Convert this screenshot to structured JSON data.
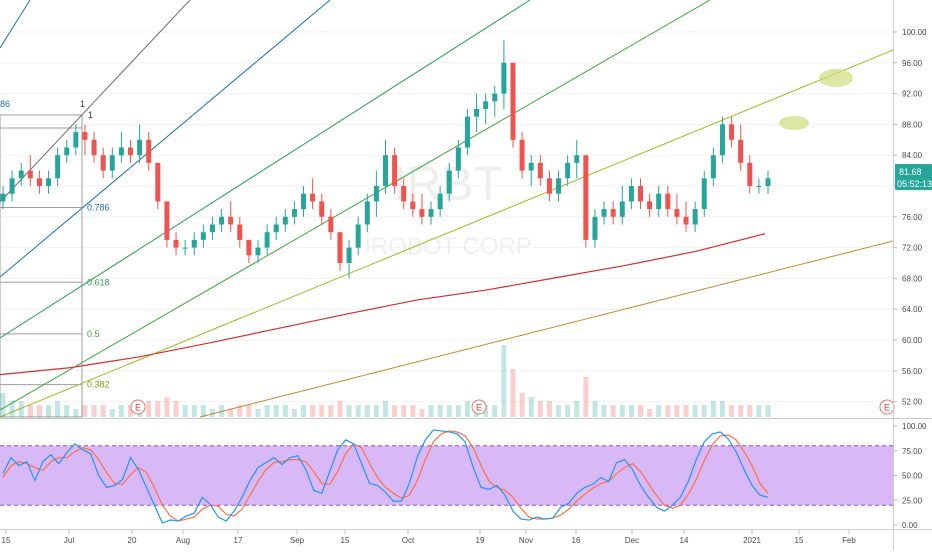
{
  "watermark": {
    "symbol": "IRBT",
    "name": "IROBOT CORP"
  },
  "price_axis": {
    "ticks": [
      "100.00",
      "96.00",
      "92.00",
      "88.00",
      "84.00",
      "80.00",
      "76.00",
      "72.00",
      "68.00",
      "64.00",
      "60.00",
      "56.00",
      "52.00"
    ],
    "tick_values": [
      100,
      96,
      92,
      88,
      84,
      80,
      76,
      72,
      68,
      64,
      60,
      56,
      52
    ],
    "last_price": "81.68",
    "countdown": "05:52:13",
    "last_price_color": "#26a69a"
  },
  "oscillator_axis": {
    "ticks": [
      "100.00",
      "75.00",
      "50.00",
      "25.00",
      "0.00"
    ],
    "tick_values": [
      100,
      75,
      50,
      25,
      0
    ],
    "upper_band": 80,
    "lower_band": 20
  },
  "time_axis": {
    "labels": [
      "15",
      "Jul",
      "20",
      "Aug",
      "17",
      "Sep",
      "15",
      "Oct",
      "19",
      "Nov",
      "16",
      "Dec",
      "14",
      "2021",
      "15",
      "Feb"
    ]
  },
  "fib_levels": [
    {
      "label": "0.786",
      "price": 77.2,
      "color": "#1e6fb0"
    },
    {
      "label": "0.618",
      "price": 67.5,
      "color": "#2e9e5b"
    },
    {
      "label": "0.5",
      "price": 60.8,
      "color": "#43a047"
    },
    {
      "label": "0.382",
      "price": 54.2,
      "color": "#8a9a10"
    }
  ],
  "fib_corner": {
    "left_label": "86",
    "top_label_a": "1",
    "top_label_b": "1"
  },
  "earnings_marker": "E",
  "colors": {
    "up": "#26a69a",
    "down": "#ef5350",
    "ma": "#d32f2f",
    "stoch_k": "#2196f3",
    "stoch_d": "#ff7043",
    "osc_band": "#d9b8f7",
    "axis_text": "#4a4a4a"
  },
  "chart_data": {
    "type": "candlestick",
    "price_range": [
      49.5,
      103.5
    ],
    "oscillator_range": [
      -7,
      106
    ],
    "candles": [
      [
        78,
        80,
        77,
        79
      ],
      [
        79,
        82,
        78,
        81
      ],
      [
        81,
        83,
        80,
        82
      ],
      [
        82,
        84,
        80,
        81
      ],
      [
        81,
        82,
        79,
        80
      ],
      [
        80,
        82,
        79,
        81
      ],
      [
        81,
        85,
        80,
        84
      ],
      [
        84,
        86,
        83,
        85
      ],
      [
        85,
        88,
        84,
        87
      ],
      [
        87,
        88,
        84,
        86
      ],
      [
        86,
        87,
        83,
        84
      ],
      [
        84,
        85,
        81,
        82
      ],
      [
        82,
        85,
        81,
        84
      ],
      [
        84,
        87,
        83,
        85
      ],
      [
        85,
        86,
        83,
        84
      ],
      [
        84,
        88,
        83,
        86
      ],
      [
        86,
        87,
        82,
        83
      ],
      [
        83,
        83,
        77,
        78
      ],
      [
        78,
        78,
        72,
        73
      ],
      [
        73,
        74,
        71,
        72
      ],
      [
        72,
        73,
        71,
        72
      ],
      [
        72,
        74,
        71,
        73
      ],
      [
        73,
        75,
        72,
        74
      ],
      [
        74,
        76,
        73,
        75
      ],
      [
        75,
        77,
        74,
        76
      ],
      [
        76,
        78,
        74,
        75
      ],
      [
        75,
        76,
        72,
        73
      ],
      [
        73,
        73,
        70,
        71
      ],
      [
        71,
        73,
        70,
        72
      ],
      [
        72,
        75,
        71,
        74
      ],
      [
        74,
        76,
        73,
        75
      ],
      [
        75,
        77,
        74,
        76
      ],
      [
        76,
        78,
        75,
        77
      ],
      [
        77,
        80,
        76,
        79
      ],
      [
        79,
        81,
        77,
        78
      ],
      [
        78,
        79,
        75,
        76
      ],
      [
        76,
        77,
        73,
        74
      ],
      [
        74,
        74,
        69,
        70
      ],
      [
        70,
        73,
        68,
        72
      ],
      [
        72,
        76,
        71,
        75
      ],
      [
        75,
        79,
        74,
        78
      ],
      [
        78,
        82,
        76,
        80
      ],
      [
        80,
        86,
        79,
        84
      ],
      [
        84,
        85,
        79,
        80
      ],
      [
        80,
        81,
        77,
        78
      ],
      [
        78,
        79,
        76,
        77
      ],
      [
        77,
        79,
        75,
        76
      ],
      [
        76,
        78,
        75,
        77
      ],
      [
        77,
        80,
        76,
        79
      ],
      [
        79,
        83,
        78,
        82
      ],
      [
        82,
        86,
        81,
        85
      ],
      [
        85,
        90,
        84,
        89
      ],
      [
        89,
        92,
        87,
        90
      ],
      [
        90,
        92,
        88,
        91
      ],
      [
        91,
        93,
        89,
        92
      ],
      [
        92,
        99,
        90,
        96
      ],
      [
        96,
        96,
        85,
        86
      ],
      [
        86,
        87,
        81,
        82
      ],
      [
        82,
        84,
        80,
        83
      ],
      [
        83,
        84,
        80,
        81
      ],
      [
        81,
        82,
        78,
        79
      ],
      [
        79,
        82,
        78,
        81
      ],
      [
        81,
        84,
        80,
        83
      ],
      [
        83,
        86,
        81,
        84
      ],
      [
        84,
        84,
        72,
        73
      ],
      [
        73,
        77,
        72,
        76
      ],
      [
        76,
        78,
        75,
        77
      ],
      [
        77,
        78,
        75,
        76
      ],
      [
        76,
        80,
        75,
        78
      ],
      [
        78,
        81,
        77,
        80
      ],
      [
        80,
        81,
        77,
        78
      ],
      [
        78,
        79,
        76,
        77
      ],
      [
        77,
        80,
        76,
        79
      ],
      [
        79,
        80,
        76,
        77
      ],
      [
        77,
        79,
        75,
        76
      ],
      [
        76,
        78,
        74,
        75
      ],
      [
        75,
        78,
        74,
        77
      ],
      [
        77,
        82,
        76,
        81
      ],
      [
        81,
        85,
        80,
        84
      ],
      [
        84,
        89,
        83,
        88
      ],
      [
        88,
        89,
        85,
        86
      ],
      [
        86,
        88,
        82,
        83
      ],
      [
        83,
        84,
        79,
        80
      ],
      [
        80,
        81,
        79,
        80
      ],
      [
        80,
        82,
        79,
        81
      ]
    ],
    "volume": [
      6,
      4,
      4,
      3,
      3,
      3,
      4,
      3,
      2,
      3,
      3,
      3,
      2,
      3,
      3,
      3,
      4,
      4,
      5,
      4,
      3,
      3,
      3,
      2,
      3,
      2,
      3,
      3,
      2,
      3,
      3,
      3,
      2,
      3,
      3,
      3,
      3,
      4,
      3,
      3,
      3,
      3,
      4,
      3,
      3,
      3,
      2,
      3,
      3,
      3,
      3,
      4,
      3,
      3,
      3,
      18,
      12,
      6,
      5,
      4,
      4,
      3,
      3,
      4,
      10,
      4,
      3,
      3,
      3,
      3,
      3,
      2,
      3,
      3,
      3,
      3,
      3,
      3,
      4,
      4,
      3,
      3,
      3,
      3,
      3
    ],
    "moving_average": [
      55.5,
      56.4,
      57.8,
      59.6,
      61.5,
      63.4,
      65.2,
      66.5,
      68.1,
      69.7,
      71.5,
      73.8
    ],
    "stoch_k": [
      52,
      68,
      60,
      64,
      45,
      64,
      71,
      62,
      73,
      82,
      76,
      72,
      50,
      38,
      40,
      46,
      68,
      56,
      38,
      20,
      2,
      5,
      4,
      9,
      12,
      28,
      21,
      8,
      4,
      14,
      28,
      45,
      58,
      63,
      68,
      61,
      68,
      70,
      56,
      35,
      32,
      54,
      76,
      86,
      82,
      62,
      42,
      40,
      33,
      24,
      24,
      42,
      69,
      86,
      96,
      95,
      94,
      92,
      84,
      58,
      38,
      36,
      40,
      30,
      14,
      6,
      5,
      8,
      6,
      7,
      18,
      22,
      32,
      38,
      41,
      48,
      44,
      63,
      66,
      56,
      40,
      28,
      18,
      14,
      20,
      28,
      44,
      66,
      84,
      92,
      94,
      87,
      74,
      56,
      40,
      30,
      28
    ],
    "stoch_d": [
      48,
      60,
      64,
      62,
      58,
      55,
      64,
      68,
      68,
      74,
      78,
      76,
      66,
      53,
      42,
      41,
      51,
      58,
      53,
      38,
      20,
      9,
      4,
      6,
      8,
      16,
      20,
      19,
      11,
      9,
      16,
      30,
      44,
      56,
      63,
      64,
      66,
      66,
      64,
      54,
      42,
      41,
      54,
      72,
      82,
      78,
      62,
      48,
      38,
      32,
      27,
      30,
      45,
      66,
      84,
      92,
      95,
      94,
      90,
      78,
      60,
      44,
      38,
      35,
      28,
      17,
      8,
      6,
      6,
      7,
      10,
      16,
      24,
      31,
      37,
      42,
      44,
      52,
      58,
      62,
      54,
      42,
      30,
      20,
      17,
      20,
      31,
      46,
      65,
      81,
      90,
      91,
      86,
      74,
      60,
      42,
      32
    ]
  }
}
